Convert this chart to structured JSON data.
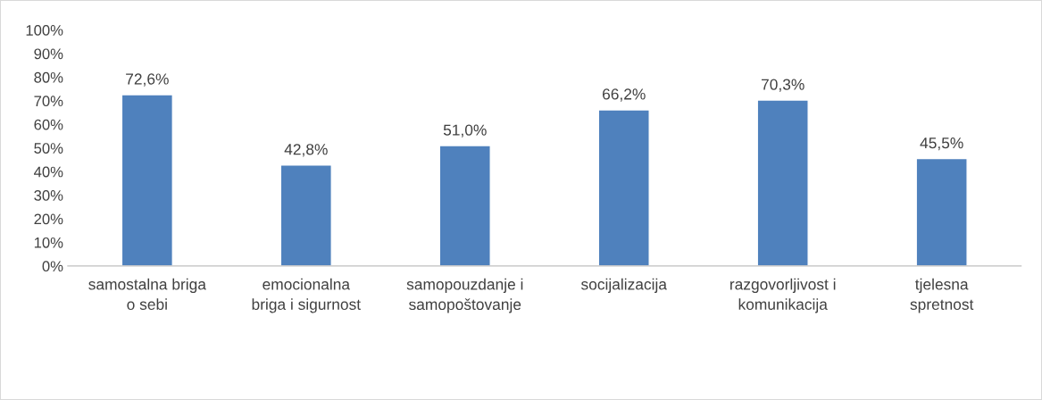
{
  "chart_data": {
    "type": "bar",
    "categories": [
      "samostalna briga\no sebi",
      "emocionalna\nbriga i sigurnost",
      "samopouzdanje i\nsamopoštovanje",
      "socijalizacija",
      "razgovorljivost i\nkomunikacija",
      "tjelesna\nspretnost"
    ],
    "values": [
      72.6,
      42.8,
      51.0,
      66.2,
      70.3,
      45.5
    ],
    "value_labels": [
      "72,6%",
      "42,8%",
      "51,0%",
      "66,2%",
      "70,3%",
      "45,5%"
    ],
    "color": "#4f81bd",
    "ylim": [
      0,
      100
    ],
    "yticks": [
      {
        "value": 0,
        "label": "0%"
      },
      {
        "value": 10,
        "label": "10%"
      },
      {
        "value": 20,
        "label": "20%"
      },
      {
        "value": 30,
        "label": "30%"
      },
      {
        "value": 40,
        "label": "40%"
      },
      {
        "value": 50,
        "label": "50%"
      },
      {
        "value": 60,
        "label": "60%"
      },
      {
        "value": 70,
        "label": "70%"
      },
      {
        "value": 80,
        "label": "80%"
      },
      {
        "value": 90,
        "label": "90%"
      },
      {
        "value": 100,
        "label": "100%"
      }
    ],
    "grid": false,
    "legend": false
  }
}
